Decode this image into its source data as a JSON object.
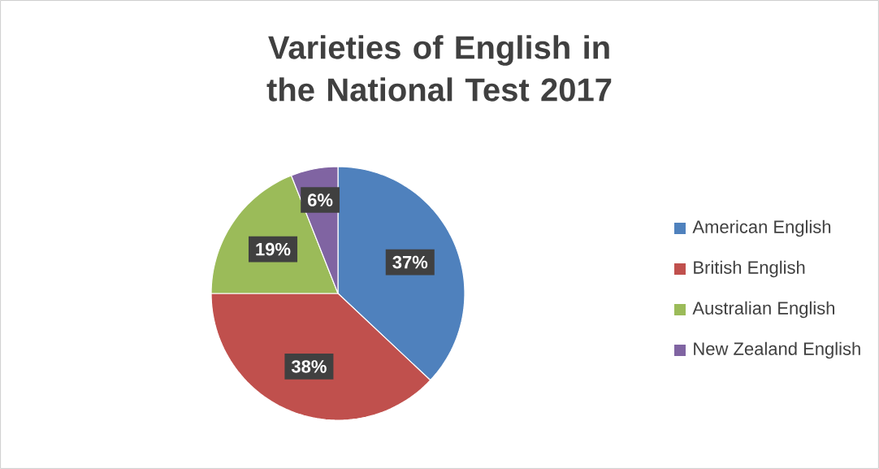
{
  "chart_data": {
    "type": "pie",
    "title": "Varieties of English in the National Test 2017",
    "categories": [
      "American English",
      "British English",
      "Australian English",
      "New Zealand English"
    ],
    "values": [
      37,
      38,
      19,
      6
    ],
    "value_labels": [
      "37%",
      "38%",
      "19%",
      "6%"
    ],
    "colors": [
      "#4f81bd",
      "#c0504d",
      "#9bbb59",
      "#8064a2"
    ],
    "legend": "right"
  }
}
